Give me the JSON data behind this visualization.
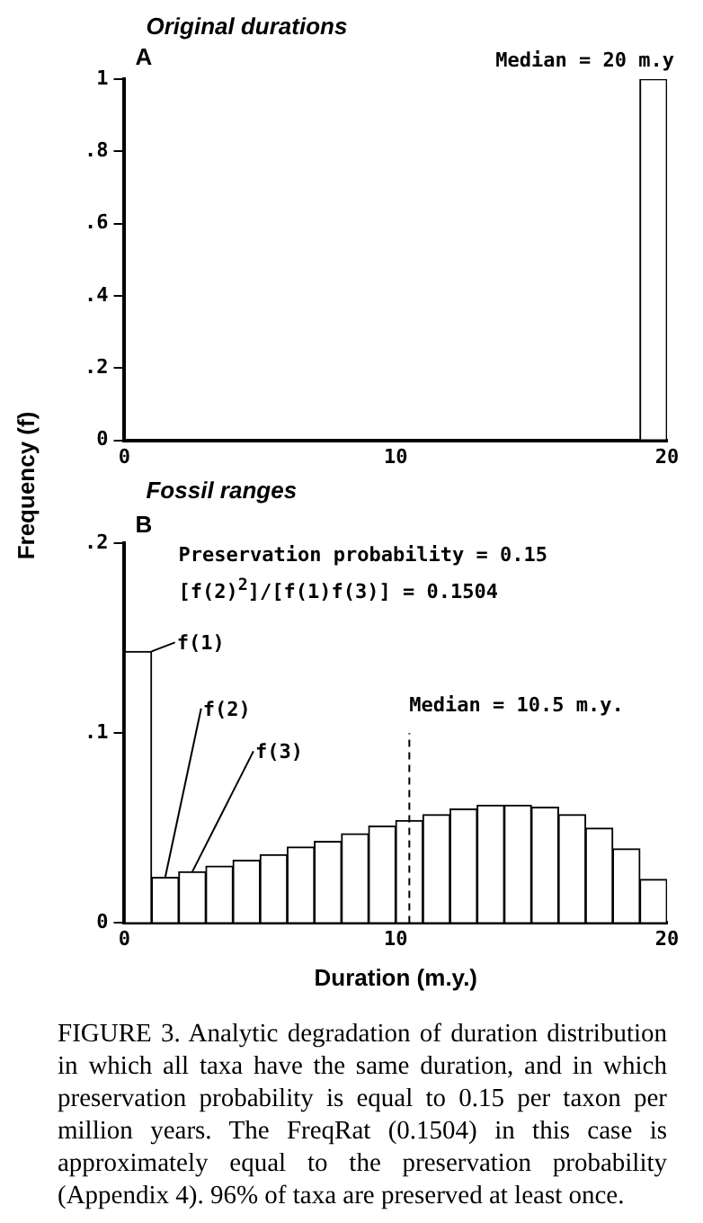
{
  "chart_data": [
    {
      "type": "histogram",
      "title": "Original durations",
      "ylabel": "Frequency (f)",
      "bins": [
        0,
        1,
        2,
        3,
        4,
        5,
        6,
        7,
        8,
        9,
        10,
        11,
        12,
        13,
        14,
        15,
        16,
        17,
        18,
        19,
        20
      ],
      "values": [
        0,
        0,
        0,
        0,
        0,
        0,
        0,
        0,
        0,
        0,
        0,
        0,
        0,
        0,
        0,
        0,
        0,
        0,
        0,
        1
      ],
      "color": "#ffffff",
      "xlim": [
        0,
        20
      ],
      "xticks": [
        {
          "value": 0,
          "label": "0"
        },
        {
          "value": 10,
          "label": "10"
        },
        {
          "value": 20,
          "label": "20"
        }
      ],
      "ylim": [
        0,
        1
      ],
      "yticks": [
        {
          "value": 0,
          "label": "0"
        },
        {
          "value": 0.2,
          "label": ".2"
        },
        {
          "value": 0.4,
          "label": ".4"
        },
        {
          "value": 0.6,
          "label": ".6"
        },
        {
          "value": 0.8,
          "label": ".8"
        },
        {
          "value": 1,
          "label": "1"
        }
      ],
      "grid": false,
      "annotations": [
        "A",
        "Median = 20 m.y"
      ]
    },
    {
      "type": "histogram",
      "title": "Fossil ranges",
      "xlabel": "Duration (m.y.)",
      "bins": [
        0,
        1,
        2,
        3,
        4,
        5,
        6,
        7,
        8,
        9,
        10,
        11,
        12,
        13,
        14,
        15,
        16,
        17,
        18,
        19,
        20
      ],
      "values": [
        0.143,
        0.024,
        0.027,
        0.03,
        0.033,
        0.036,
        0.04,
        0.043,
        0.047,
        0.051,
        0.054,
        0.057,
        0.06,
        0.062,
        0.062,
        0.061,
        0.057,
        0.05,
        0.039,
        0.023
      ],
      "color": "#ffffff",
      "xlim": [
        0,
        20
      ],
      "xticks": [
        {
          "value": 0,
          "label": "0"
        },
        {
          "value": 10,
          "label": "10"
        },
        {
          "value": 20,
          "label": "20"
        }
      ],
      "ylim": [
        0,
        0.2
      ],
      "yticks": [
        {
          "value": 0,
          "label": "0"
        },
        {
          "value": 0.1,
          "label": ".1"
        },
        {
          "value": 0.2,
          "label": ".2"
        }
      ],
      "grid": false,
      "ref_lines": [
        {
          "axis": "x",
          "value": 10.5,
          "label": "Median = 10.5 m.y.",
          "line_style": "dashed"
        }
      ],
      "annotations": [
        "B",
        "Preservation probability = 0.15",
        "[f(2)$^{2}$]/[f(1)f(3)] = 0.1504",
        {
          "text": "f(1)",
          "x": 1,
          "y": 0.143
        },
        {
          "text": "f(2)",
          "x": 1.5,
          "y": 0.024
        },
        {
          "text": "f(3)",
          "x": 2.5,
          "y": 0.027
        },
        "FIGURE 3. Analytic degradation of duration distribution in which all taxa have the same duration, and in which preservation probability is equal to 0.15 per taxon per million years. The FreqRat (0.1504) in this case is approximately equal to the preservation probability (Appendix 4). 96% of taxa are preserved at least once."
      ]
    }
  ]
}
